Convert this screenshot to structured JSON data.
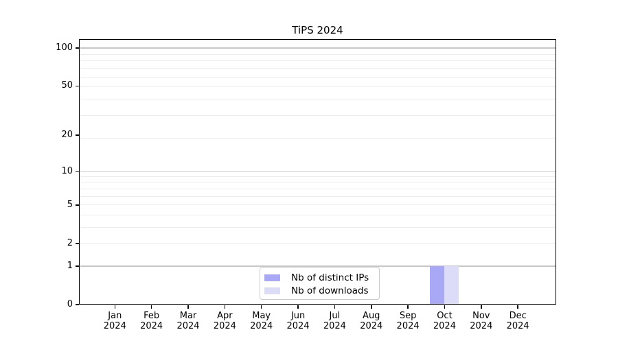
{
  "chart_data": {
    "type": "bar",
    "title": "TiPS 2024",
    "categories": [
      "Jan",
      "Feb",
      "Mar",
      "Apr",
      "May",
      "Jun",
      "Jul",
      "Aug",
      "Sep",
      "Oct",
      "Nov",
      "Dec"
    ],
    "category_year": "2024",
    "series": [
      {
        "name": "Nb of distinct IPs",
        "color": "#a8a8f6",
        "values": [
          0,
          0,
          0,
          0,
          0,
          0,
          0,
          0,
          0,
          1,
          0,
          0
        ]
      },
      {
        "name": "Nb of downloads",
        "color": "#dcdcf8",
        "values": [
          0,
          0,
          0,
          0,
          0,
          0,
          0,
          0,
          0,
          1,
          0,
          0
        ]
      }
    ],
    "xlabel": "",
    "ylabel": "",
    "yscale": "log1p",
    "ylim": [
      0,
      116
    ],
    "y_ticks": [
      0,
      1,
      2,
      5,
      10,
      20,
      50,
      100
    ],
    "grid": {
      "on": true,
      "major_values": [
        1,
        10,
        100
      ],
      "minor_values": [
        2,
        3,
        4,
        5,
        6,
        7,
        8,
        9,
        19,
        29,
        39,
        49,
        59,
        69,
        79,
        89
      ],
      "major_color": "#c6c6c6",
      "minor_color": "#ececec"
    },
    "legend": {
      "position": "lower center",
      "entries": [
        "Nb of distinct IPs",
        "Nb of downloads"
      ]
    },
    "axis_color": "#000000",
    "background_color": "#ffffff"
  }
}
